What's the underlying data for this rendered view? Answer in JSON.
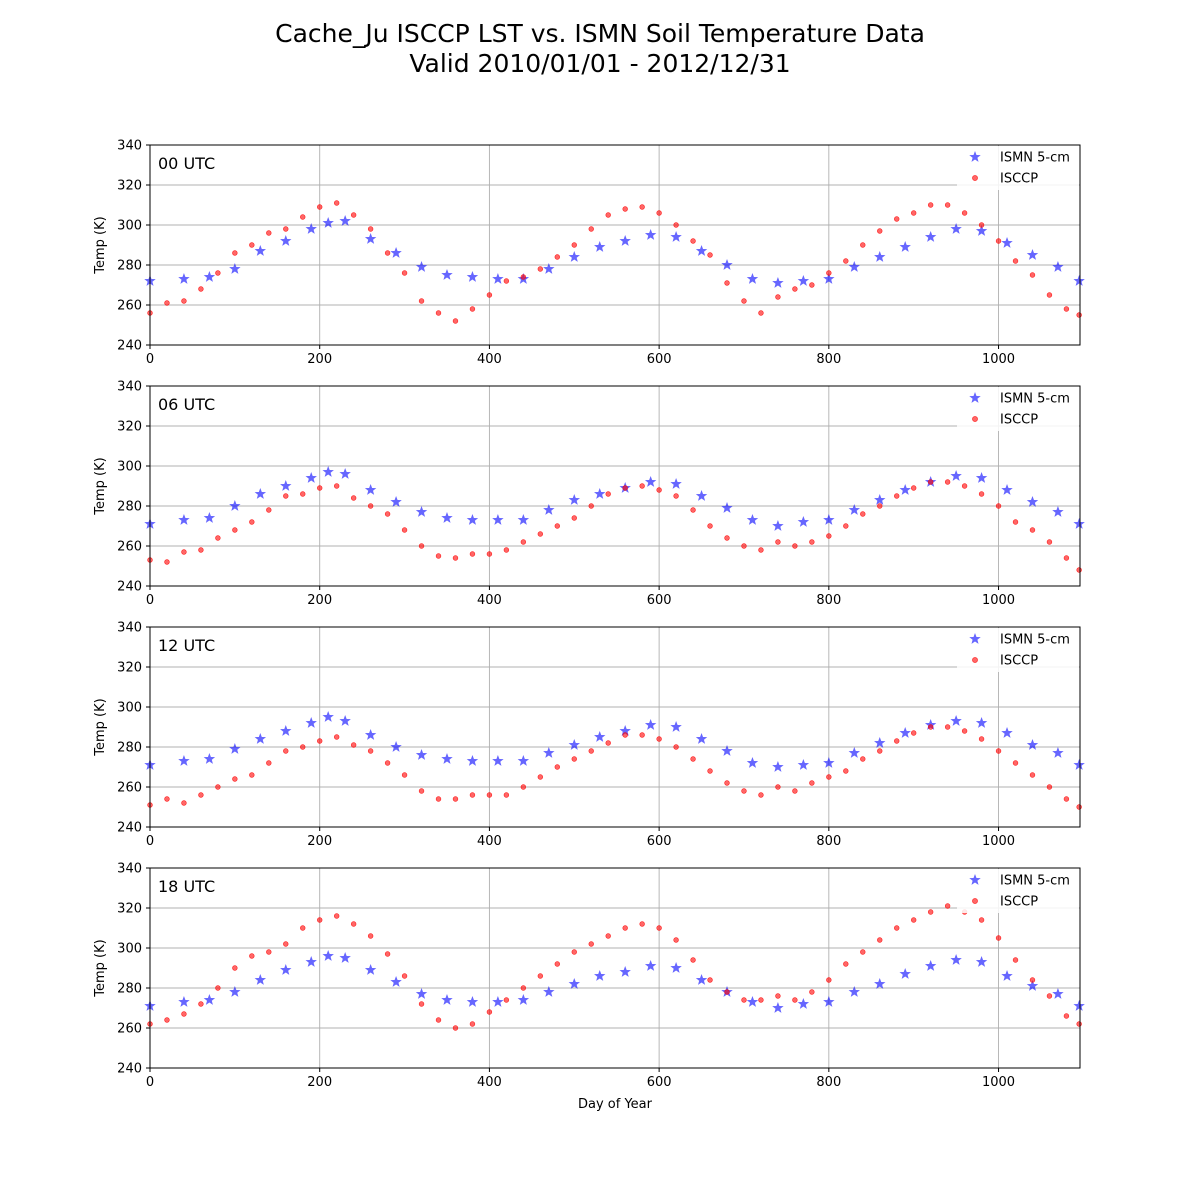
{
  "figure": {
    "title_line1": "Cache_Ju ISCCP LST vs. ISMN Soil Temperature Data",
    "title_line2": "Valid 2010/01/01 - 2012/12/31"
  },
  "colors": {
    "ismn": "#0000ff",
    "isccp": "#ff0000",
    "grid": "#b0b0b0"
  },
  "chart_data": [
    {
      "type": "scatter",
      "panel_label": "00 UTC",
      "xlabel": "",
      "ylabel": "Temp (K)",
      "xlim": [
        0,
        1096
      ],
      "ylim": [
        240,
        340
      ],
      "xticks": [
        0,
        200,
        400,
        600,
        800,
        1000
      ],
      "yticks": [
        240,
        260,
        280,
        300,
        320,
        340
      ],
      "grid": true,
      "legend_position": "upper-right",
      "series": [
        {
          "name": "ISMN 5-cm",
          "marker": "star",
          "x": [
            0,
            40,
            70,
            100,
            130,
            160,
            190,
            210,
            230,
            260,
            290,
            320,
            350,
            380,
            410,
            440,
            470,
            500,
            530,
            560,
            590,
            620,
            650,
            680,
            710,
            740,
            770,
            800,
            830,
            860,
            890,
            920,
            950,
            980,
            1010,
            1040,
            1070,
            1095
          ],
          "y": [
            272,
            273,
            274,
            278,
            287,
            292,
            298,
            301,
            302,
            293,
            286,
            279,
            275,
            274,
            273,
            273,
            278,
            284,
            289,
            292,
            295,
            294,
            287,
            280,
            273,
            271,
            272,
            273,
            279,
            284,
            289,
            294,
            298,
            297,
            291,
            285,
            279,
            272
          ]
        },
        {
          "name": "ISCCP",
          "marker": "circle",
          "x": [
            0,
            20,
            40,
            60,
            80,
            100,
            120,
            140,
            160,
            180,
            200,
            220,
            240,
            260,
            280,
            300,
            320,
            340,
            360,
            380,
            400,
            420,
            440,
            460,
            480,
            500,
            520,
            540,
            560,
            580,
            600,
            620,
            640,
            660,
            680,
            700,
            720,
            740,
            760,
            780,
            800,
            820,
            840,
            860,
            880,
            900,
            920,
            940,
            960,
            980,
            1000,
            1020,
            1040,
            1060,
            1080,
            1095
          ],
          "y": [
            256,
            261,
            262,
            268,
            276,
            286,
            290,
            296,
            298,
            304,
            309,
            311,
            305,
            298,
            286,
            276,
            262,
            256,
            252,
            258,
            265,
            272,
            274,
            278,
            284,
            290,
            298,
            305,
            308,
            309,
            306,
            300,
            292,
            285,
            271,
            262,
            256,
            264,
            268,
            270,
            276,
            282,
            290,
            297,
            303,
            306,
            310,
            310,
            306,
            300,
            292,
            282,
            275,
            265,
            258,
            255
          ]
        }
      ]
    },
    {
      "type": "scatter",
      "panel_label": "06 UTC",
      "xlabel": "",
      "ylabel": "Temp (K)",
      "xlim": [
        0,
        1096
      ],
      "ylim": [
        240,
        340
      ],
      "xticks": [
        0,
        200,
        400,
        600,
        800,
        1000
      ],
      "yticks": [
        240,
        260,
        280,
        300,
        320,
        340
      ],
      "grid": true,
      "legend_position": "upper-right",
      "series": [
        {
          "name": "ISMN 5-cm",
          "marker": "star",
          "x": [
            0,
            40,
            70,
            100,
            130,
            160,
            190,
            210,
            230,
            260,
            290,
            320,
            350,
            380,
            410,
            440,
            470,
            500,
            530,
            560,
            590,
            620,
            650,
            680,
            710,
            740,
            770,
            800,
            830,
            860,
            890,
            920,
            950,
            980,
            1010,
            1040,
            1070,
            1095
          ],
          "y": [
            271,
            273,
            274,
            280,
            286,
            290,
            294,
            297,
            296,
            288,
            282,
            277,
            274,
            273,
            273,
            273,
            278,
            283,
            286,
            289,
            292,
            291,
            285,
            279,
            273,
            270,
            272,
            273,
            278,
            283,
            288,
            292,
            295,
            294,
            288,
            282,
            277,
            271
          ]
        },
        {
          "name": "ISCCP",
          "marker": "circle",
          "x": [
            0,
            20,
            40,
            60,
            80,
            100,
            120,
            140,
            160,
            180,
            200,
            220,
            240,
            260,
            280,
            300,
            320,
            340,
            360,
            380,
            400,
            420,
            440,
            460,
            480,
            500,
            520,
            540,
            560,
            580,
            600,
            620,
            640,
            660,
            680,
            700,
            720,
            740,
            760,
            780,
            800,
            820,
            840,
            860,
            880,
            900,
            920,
            940,
            960,
            980,
            1000,
            1020,
            1040,
            1060,
            1080,
            1095
          ],
          "y": [
            253,
            252,
            257,
            258,
            264,
            268,
            272,
            278,
            285,
            286,
            289,
            290,
            284,
            280,
            276,
            268,
            260,
            255,
            254,
            256,
            256,
            258,
            262,
            266,
            270,
            274,
            280,
            286,
            289,
            290,
            288,
            285,
            278,
            270,
            264,
            260,
            258,
            262,
            260,
            262,
            265,
            270,
            276,
            280,
            285,
            289,
            292,
            292,
            290,
            286,
            280,
            272,
            268,
            262,
            254,
            248
          ]
        }
      ]
    },
    {
      "type": "scatter",
      "panel_label": "12 UTC",
      "xlabel": "",
      "ylabel": "Temp (K)",
      "xlim": [
        0,
        1096
      ],
      "ylim": [
        240,
        340
      ],
      "xticks": [
        0,
        200,
        400,
        600,
        800,
        1000
      ],
      "yticks": [
        240,
        260,
        280,
        300,
        320,
        340
      ],
      "grid": true,
      "legend_position": "upper-right",
      "series": [
        {
          "name": "ISMN 5-cm",
          "marker": "star",
          "x": [
            0,
            40,
            70,
            100,
            130,
            160,
            190,
            210,
            230,
            260,
            290,
            320,
            350,
            380,
            410,
            440,
            470,
            500,
            530,
            560,
            590,
            620,
            650,
            680,
            710,
            740,
            770,
            800,
            830,
            860,
            890,
            920,
            950,
            980,
            1010,
            1040,
            1070,
            1095
          ],
          "y": [
            271,
            273,
            274,
            279,
            284,
            288,
            292,
            295,
            293,
            286,
            280,
            276,
            274,
            273,
            273,
            273,
            277,
            281,
            285,
            288,
            291,
            290,
            284,
            278,
            272,
            270,
            271,
            272,
            277,
            282,
            287,
            291,
            293,
            292,
            287,
            281,
            277,
            271
          ]
        },
        {
          "name": "ISCCP",
          "marker": "circle",
          "x": [
            0,
            20,
            40,
            60,
            80,
            100,
            120,
            140,
            160,
            180,
            200,
            220,
            240,
            260,
            280,
            300,
            320,
            340,
            360,
            380,
            400,
            420,
            440,
            460,
            480,
            500,
            520,
            540,
            560,
            580,
            600,
            620,
            640,
            660,
            680,
            700,
            720,
            740,
            760,
            780,
            800,
            820,
            840,
            860,
            880,
            900,
            920,
            940,
            960,
            980,
            1000,
            1020,
            1040,
            1060,
            1080,
            1095
          ],
          "y": [
            251,
            254,
            252,
            256,
            260,
            264,
            266,
            272,
            278,
            280,
            283,
            285,
            281,
            278,
            272,
            266,
            258,
            254,
            254,
            256,
            256,
            256,
            260,
            265,
            270,
            274,
            278,
            282,
            286,
            286,
            284,
            280,
            274,
            268,
            262,
            258,
            256,
            260,
            258,
            262,
            265,
            268,
            274,
            278,
            283,
            287,
            290,
            290,
            288,
            284,
            278,
            272,
            266,
            260,
            254,
            250
          ]
        }
      ]
    },
    {
      "type": "scatter",
      "panel_label": "18 UTC",
      "xlabel": "Day of Year",
      "ylabel": "Temp (K)",
      "xlim": [
        0,
        1096
      ],
      "ylim": [
        240,
        340
      ],
      "xticks": [
        0,
        200,
        400,
        600,
        800,
        1000
      ],
      "yticks": [
        240,
        260,
        280,
        300,
        320,
        340
      ],
      "grid": true,
      "legend_position": "upper-right",
      "series": [
        {
          "name": "ISMN 5-cm",
          "marker": "star",
          "x": [
            0,
            40,
            70,
            100,
            130,
            160,
            190,
            210,
            230,
            260,
            290,
            320,
            350,
            380,
            410,
            440,
            470,
            500,
            530,
            560,
            590,
            620,
            650,
            680,
            710,
            740,
            770,
            800,
            830,
            860,
            890,
            920,
            950,
            980,
            1010,
            1040,
            1070,
            1095
          ],
          "y": [
            271,
            273,
            274,
            278,
            284,
            289,
            293,
            296,
            295,
            289,
            283,
            277,
            274,
            273,
            273,
            274,
            278,
            282,
            286,
            288,
            291,
            290,
            284,
            278,
            273,
            270,
            272,
            273,
            278,
            282,
            287,
            291,
            294,
            293,
            286,
            281,
            277,
            271
          ]
        },
        {
          "name": "ISCCP",
          "marker": "circle",
          "x": [
            0,
            20,
            40,
            60,
            80,
            100,
            120,
            140,
            160,
            180,
            200,
            220,
            240,
            260,
            280,
            300,
            320,
            340,
            360,
            380,
            400,
            420,
            440,
            460,
            480,
            500,
            520,
            540,
            560,
            580,
            600,
            620,
            640,
            660,
            680,
            700,
            720,
            740,
            760,
            780,
            800,
            820,
            840,
            860,
            880,
            900,
            920,
            940,
            960,
            980,
            1000,
            1020,
            1040,
            1060,
            1080,
            1095
          ],
          "y": [
            262,
            264,
            267,
            272,
            280,
            290,
            296,
            298,
            302,
            310,
            314,
            316,
            312,
            306,
            297,
            286,
            272,
            264,
            260,
            262,
            268,
            274,
            280,
            286,
            292,
            298,
            302,
            306,
            310,
            312,
            310,
            304,
            294,
            284,
            278,
            274,
            274,
            276,
            274,
            278,
            284,
            292,
            298,
            304,
            310,
            314,
            318,
            321,
            318,
            314,
            305,
            294,
            284,
            276,
            266,
            262
          ]
        }
      ]
    }
  ]
}
